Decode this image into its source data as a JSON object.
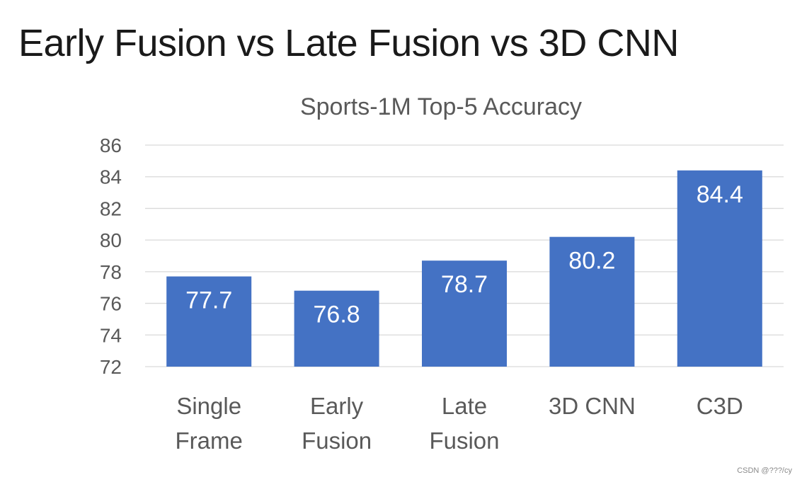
{
  "slide": {
    "title": "Early Fusion vs Late Fusion vs 3D CNN",
    "watermark": "CSDN @???/cy"
  },
  "chart_data": {
    "type": "bar",
    "title": "Sports-1M Top-5 Accuracy",
    "categories": [
      [
        "Single",
        "Frame"
      ],
      [
        "Early",
        "Fusion"
      ],
      [
        "Late",
        "Fusion"
      ],
      [
        "3D CNN"
      ],
      [
        "C3D"
      ]
    ],
    "values": [
      77.7,
      76.8,
      78.7,
      80.2,
      84.4
    ],
    "data_labels": [
      "77.7",
      "76.8",
      "78.7",
      "80.2",
      "84.4"
    ],
    "ylim": [
      72,
      86
    ],
    "yticks": [
      72,
      74,
      76,
      78,
      80,
      82,
      84,
      86
    ],
    "grid": true,
    "bar_color": "#4472C4",
    "grid_color": "#d9d9d9",
    "xlabel": "",
    "ylabel": ""
  }
}
